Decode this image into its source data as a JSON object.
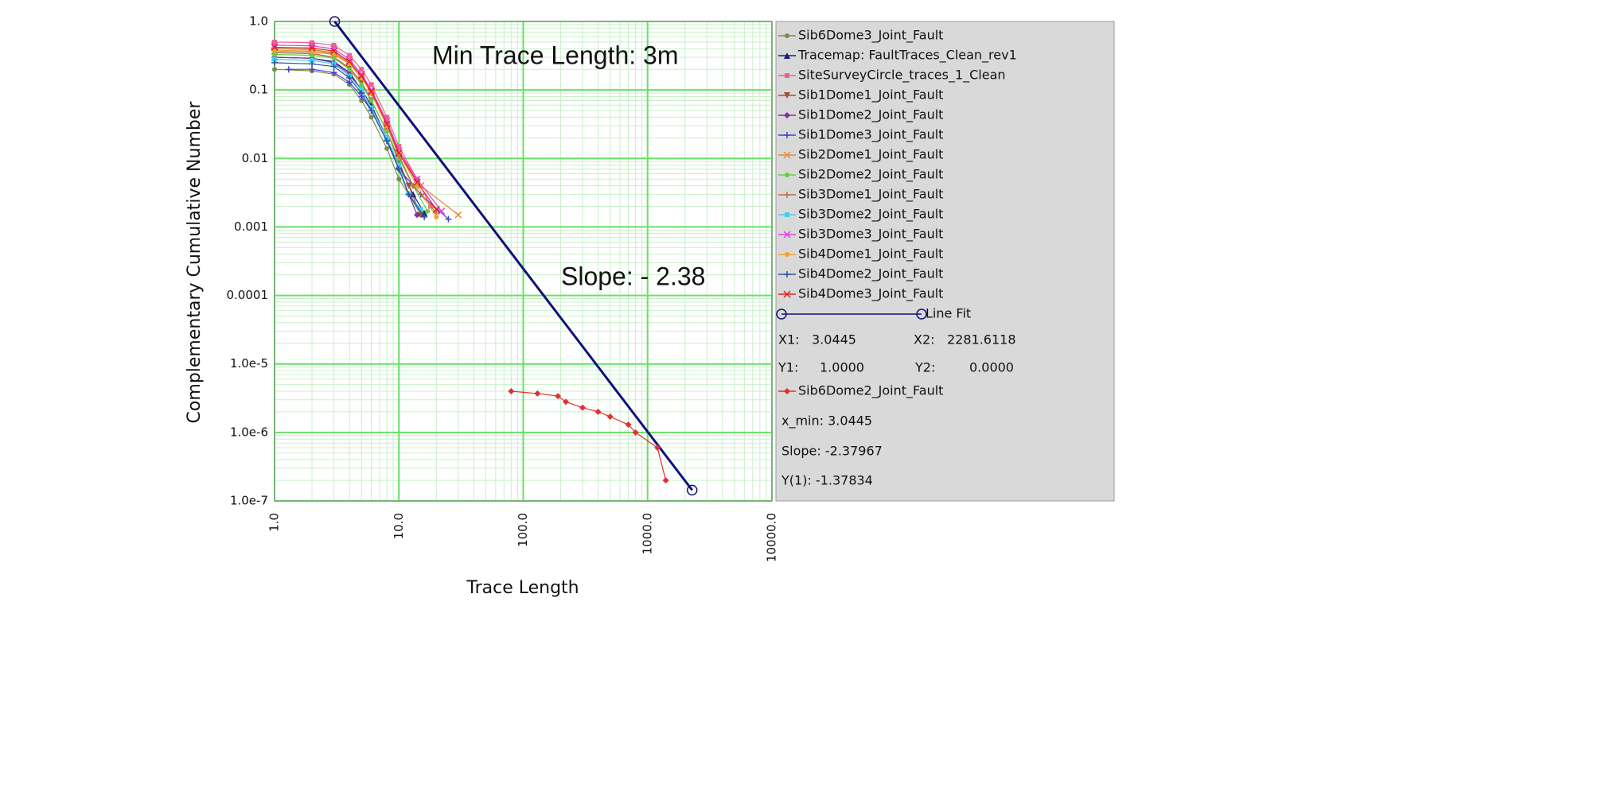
{
  "chart_data": {
    "type": "line",
    "x_label": "Trace Length",
    "y_label": "Complementary Cumulative Number",
    "annotations": [
      "Min Trace Length: 3m",
      "Slope: - 2.38"
    ],
    "log_x": true,
    "log_y": true,
    "grid": true,
    "xlim": [
      1,
      10000
    ],
    "xticks": [
      {
        "value": 1,
        "label": "1.0"
      },
      {
        "value": 10,
        "label": "10.0"
      },
      {
        "value": 100,
        "label": "100.0"
      },
      {
        "value": 1000,
        "label": "1000.0"
      },
      {
        "value": 10000,
        "label": "10000.0"
      }
    ],
    "ylim": [
      1e-07,
      1
    ],
    "yticks": [
      {
        "value": 1e-07,
        "label": "1.0e-7"
      },
      {
        "value": 1e-06,
        "label": "1.0e-6"
      },
      {
        "value": 1e-05,
        "label": "1.0e-5"
      },
      0.0001,
      0.001,
      0.01,
      0.1,
      {
        "value": 1,
        "label": "1.0"
      }
    ],
    "series": [
      {
        "name": "Sib6Dome3_Joint_Fault",
        "color": "#7f8a4c",
        "marker": "circle",
        "x": [
          1,
          2,
          3,
          4,
          5,
          6,
          8,
          10,
          12,
          15
        ],
        "values": [
          0.2,
          0.19,
          0.17,
          0.12,
          0.07,
          0.04,
          0.014,
          0.005,
          0.003,
          0.0015
        ]
      },
      {
        "name": "Tracemap: FaultTraces_Clean_rev1",
        "color": "#1c1c80",
        "marker": "triangle",
        "x": [
          1,
          2,
          3,
          4,
          5,
          6,
          8,
          10,
          13,
          16
        ],
        "values": [
          0.3,
          0.29,
          0.26,
          0.18,
          0.1,
          0.06,
          0.02,
          0.008,
          0.003,
          0.0016
        ]
      },
      {
        "name": "SiteSurveyCircle_traces_1_Clean",
        "color": "#f06090",
        "marker": "square",
        "x": [
          1,
          2,
          3,
          4,
          5,
          6,
          8,
          10,
          14,
          18
        ],
        "values": [
          0.5,
          0.49,
          0.45,
          0.32,
          0.2,
          0.12,
          0.04,
          0.015,
          0.005,
          0.002
        ]
      },
      {
        "name": "Sib1Dome1_Joint_Fault",
        "color": "#a0522d",
        "marker": "triangle-down",
        "x": [
          1,
          2,
          3,
          4,
          5,
          6,
          8,
          10,
          12,
          15
        ],
        "values": [
          0.35,
          0.34,
          0.3,
          0.21,
          0.13,
          0.07,
          0.025,
          0.009,
          0.004,
          0.0015
        ]
      },
      {
        "name": "Sib1Dome2_Joint_Fault",
        "color": "#8030a0",
        "marker": "diamond",
        "x": [
          1,
          2,
          3,
          4,
          5,
          6,
          8,
          10,
          12,
          14
        ],
        "values": [
          0.3,
          0.29,
          0.25,
          0.17,
          0.1,
          0.055,
          0.02,
          0.007,
          0.003,
          0.0015
        ]
      },
      {
        "name": "Sib1Dome3_Joint_Fault",
        "color": "#4040e0",
        "marker": "plus",
        "x": [
          1.3,
          2,
          3,
          4,
          5,
          6,
          8,
          10,
          15,
          25
        ],
        "values": [
          0.2,
          0.2,
          0.18,
          0.13,
          0.08,
          0.05,
          0.018,
          0.007,
          0.003,
          0.0013
        ]
      },
      {
        "name": "Sib2Dome1_Joint_Fault",
        "color": "#f08040",
        "marker": "x",
        "x": [
          1,
          2,
          3,
          4,
          5,
          6,
          8,
          10,
          15,
          30
        ],
        "values": [
          0.37,
          0.36,
          0.33,
          0.24,
          0.15,
          0.09,
          0.03,
          0.012,
          0.004,
          0.0015
        ]
      },
      {
        "name": "Sib2Dome2_Joint_Fault",
        "color": "#60d040",
        "marker": "circle",
        "x": [
          1,
          2,
          3,
          4,
          5,
          6,
          8,
          10,
          13,
          17
        ],
        "values": [
          0.33,
          0.32,
          0.29,
          0.2,
          0.12,
          0.07,
          0.025,
          0.01,
          0.004,
          0.0017
        ]
      },
      {
        "name": "Sib3Dome1_Joint_Fault",
        "color": "#c07040",
        "marker": "plus",
        "x": [
          1,
          2,
          3,
          4,
          5,
          6,
          8,
          10,
          13,
          20
        ],
        "values": [
          0.4,
          0.39,
          0.35,
          0.25,
          0.15,
          0.09,
          0.03,
          0.011,
          0.004,
          0.0016
        ]
      },
      {
        "name": "Sib3Dome2_Joint_Fault",
        "color": "#40d0f0",
        "marker": "square",
        "x": [
          1,
          2,
          3,
          4,
          5,
          6,
          8,
          10,
          12,
          15
        ],
        "values": [
          0.28,
          0.27,
          0.24,
          0.16,
          0.1,
          0.055,
          0.02,
          0.008,
          0.003,
          0.0018
        ]
      },
      {
        "name": "Sib3Dome3_Joint_Fault",
        "color": "#e040e0",
        "marker": "x",
        "x": [
          1,
          2,
          3,
          4,
          5,
          6,
          8,
          10,
          14,
          22
        ],
        "values": [
          0.45,
          0.44,
          0.4,
          0.28,
          0.17,
          0.1,
          0.035,
          0.013,
          0.005,
          0.0017
        ]
      },
      {
        "name": "Sib4Dome1_Joint_Fault",
        "color": "#f0a030",
        "marker": "circle",
        "x": [
          1,
          2,
          3,
          4,
          5,
          6,
          8,
          10,
          14,
          20
        ],
        "values": [
          0.38,
          0.37,
          0.34,
          0.24,
          0.15,
          0.09,
          0.03,
          0.012,
          0.004,
          0.0014
        ]
      },
      {
        "name": "Sib4Dome2_Joint_Fault",
        "color": "#3050a0",
        "marker": "plus",
        "x": [
          1,
          2,
          3,
          4,
          5,
          6,
          8,
          10,
          12,
          16
        ],
        "values": [
          0.25,
          0.24,
          0.22,
          0.15,
          0.09,
          0.05,
          0.018,
          0.007,
          0.003,
          0.0014
        ]
      },
      {
        "name": "Sib4Dome3_Joint_Fault",
        "color": "#e02020",
        "marker": "x",
        "x": [
          1,
          2,
          3,
          4,
          5,
          6,
          8,
          10,
          14,
          20
        ],
        "values": [
          0.42,
          0.41,
          0.37,
          0.26,
          0.16,
          0.095,
          0.032,
          0.012,
          0.0045,
          0.0018
        ]
      },
      {
        "name": "Line Fit",
        "color": "#10107a",
        "marker": "ring",
        "x": [
          3.0445,
          2281.6118
        ],
        "values": [
          1,
          1.44e-07
        ]
      },
      {
        "name": "Sib6Dome2_Joint_Fault",
        "color": "#e03030",
        "marker": "diamond",
        "x": [
          80,
          130,
          190,
          220,
          300,
          400,
          500,
          700,
          800,
          1200,
          1400
        ],
        "values": [
          4e-06,
          3.7e-06,
          3.4e-06,
          2.8e-06,
          2.3e-06,
          2e-06,
          1.7e-06,
          1.3e-06,
          1e-06,
          6e-07,
          2e-07
        ]
      }
    ],
    "info": [
      "X1:",
      "3.0445",
      "X2:",
      "2281.6118",
      "Y1:",
      "1.0000",
      "Y2:",
      "0.0000",
      "x_min: 3.0445",
      "Slope: -2.37967",
      "Y(1): -1.37834"
    ]
  }
}
